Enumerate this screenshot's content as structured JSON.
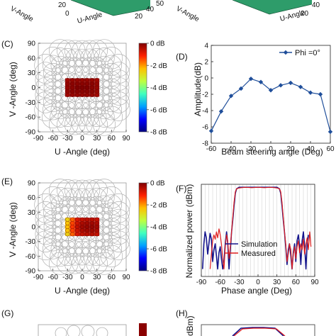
{
  "top_strip": {
    "left_labels": {
      "v_axis": "V-Angle",
      "u_axis": "U-Angle",
      "ticks": [
        "20",
        "0",
        "20",
        "40",
        "50"
      ]
    },
    "right_labels": {
      "v_axis": "V-Angle",
      "u_axis": "U-Angle",
      "ticks": [
        "20",
        "40"
      ]
    }
  },
  "colorbar": {
    "ticks": [
      "0 dB",
      "-2 dB",
      "-4 dB",
      "-6 dB",
      "-8 dB"
    ],
    "range": [
      -8,
      0
    ],
    "colors": [
      "#00007f",
      "#0000ff",
      "#00a0ff",
      "#40ffbf",
      "#bfff40",
      "#ffc000",
      "#ff2000",
      "#800000"
    ]
  },
  "chart_data": [
    {
      "panel": "(C)",
      "type": "heatmap",
      "xlabel": "U -Angle (deg)",
      "ylabel": "V -Angle (deg)",
      "xlim": [
        -90,
        90
      ],
      "ylim": [
        -90,
        90
      ],
      "xticks": [
        -90,
        -60,
        -30,
        0,
        30,
        60,
        90
      ],
      "yticks": [
        -90,
        -60,
        -30,
        0,
        30,
        60,
        90
      ],
      "active_u": [
        -30,
        -20,
        -10,
        0,
        10,
        20,
        30
      ],
      "active_v": [
        -15,
        -7.5,
        0,
        7.5,
        15
      ],
      "active_values_db": [
        [
          -0.3,
          -0.2,
          -0.2,
          -0.2,
          -0.2,
          -0.2,
          -0.3
        ],
        [
          -0.2,
          -0.1,
          -0.1,
          -0.1,
          -0.1,
          -0.1,
          -0.2
        ],
        [
          -0.2,
          -0.1,
          0,
          0,
          0,
          -0.1,
          -0.2
        ],
        [
          -0.2,
          -0.1,
          -0.1,
          -0.1,
          -0.1,
          -0.1,
          -0.2
        ],
        [
          -0.3,
          -0.2,
          -0.2,
          -0.2,
          -0.2,
          -0.2,
          -0.3
        ]
      ]
    },
    {
      "panel": "(D)",
      "type": "line",
      "xlabel": "Beam steering angle (Deg)",
      "ylabel": "Amplitude(dB)",
      "xlim": [
        -60,
        60
      ],
      "ylim": [
        -8,
        4
      ],
      "xticks": [
        -60,
        -40,
        -20,
        0,
        20,
        40,
        60
      ],
      "yticks": [
        -8,
        -6,
        -4,
        -2,
        0,
        2,
        4
      ],
      "legend_position": "top-right",
      "series": [
        {
          "name": "Phi =0°",
          "color": "#1f4e9a",
          "x": [
            -60,
            -50,
            -40,
            -30,
            -20,
            -10,
            0,
            10,
            20,
            30,
            40,
            50,
            60
          ],
          "y": [
            -6.5,
            -4.1,
            -2.2,
            -1.3,
            -0.1,
            -0.5,
            -1.5,
            -0.9,
            -0.6,
            -1.1,
            -1.8,
            -2.0,
            -6.6
          ]
        }
      ]
    },
    {
      "panel": "(E)",
      "type": "heatmap",
      "xlabel": "U -Angle (deg)",
      "ylabel": "V -Angle (deg)",
      "xlim": [
        -90,
        90
      ],
      "ylim": [
        -90,
        90
      ],
      "xticks": [
        -90,
        -60,
        -30,
        0,
        30,
        60,
        90
      ],
      "yticks": [
        -90,
        -60,
        -30,
        0,
        30,
        60,
        90
      ],
      "active_u": [
        -30,
        -20,
        -10,
        0,
        10,
        20,
        30
      ],
      "active_v": [
        -15,
        -7.5,
        0,
        7.5,
        15
      ],
      "active_values_db": [
        [
          -2.6,
          -1.6,
          -0.8,
          -0.6,
          -0.5,
          -0.5,
          -0.6
        ],
        [
          -2.4,
          -1.4,
          -0.7,
          -0.4,
          -0.3,
          -0.3,
          -0.4
        ],
        [
          -2.3,
          -1.3,
          -0.6,
          -0.3,
          -0.2,
          -0.2,
          -0.3
        ],
        [
          -2.4,
          -1.4,
          -0.7,
          -0.4,
          -0.3,
          -0.3,
          -0.4
        ],
        [
          -2.6,
          -1.6,
          -0.8,
          -0.6,
          -0.5,
          -0.5,
          -0.6
        ]
      ]
    },
    {
      "panel": "(F)",
      "type": "line",
      "xlabel": "Phase angle (Deg)",
      "ylabel": "Normalized power (dBm)",
      "xlim": [
        -90,
        90
      ],
      "ylim": [
        -60,
        2
      ],
      "xticks": [
        -90,
        -60,
        -30,
        0,
        30,
        60,
        90
      ],
      "legend_position": "bottom-center",
      "series": [
        {
          "name": "Simulation",
          "color": "#14148c",
          "x": [
            -88,
            -86,
            -84,
            -82,
            -80,
            -78,
            -76,
            -74,
            -72,
            -70,
            -68,
            -66,
            -64,
            -62,
            -60,
            -58,
            -56,
            -54,
            -52,
            -50,
            -48,
            -46,
            -44,
            -42,
            -40,
            -38,
            -36,
            -34,
            -30,
            -20,
            -10,
            0,
            10,
            20,
            30,
            34,
            36,
            38,
            40,
            42,
            44,
            46,
            48,
            50,
            52,
            54,
            56,
            58,
            60,
            62,
            64,
            66,
            68,
            70,
            72,
            74,
            76,
            78,
            80
          ],
          "y": [
            -55,
            -38,
            -30,
            -34,
            -45,
            -38,
            -31,
            -35,
            -50,
            -42,
            -38,
            -46,
            -55,
            -44,
            -40,
            -48,
            -55,
            -50,
            -38,
            -30,
            -38,
            -55,
            -42,
            -30,
            -22,
            -12,
            -4,
            -1,
            0,
            0,
            0,
            0,
            0,
            0,
            0,
            -1,
            -4,
            -12,
            -22,
            -30,
            -40,
            -52,
            -42,
            -38,
            -46,
            -55,
            -44,
            -38,
            -50,
            -36,
            -32,
            -40,
            -52,
            -36,
            -30,
            -40,
            -55,
            -38,
            -32
          ]
        },
        {
          "name": "Measured",
          "color": "#e01f1f",
          "x": [
            -76,
            -74,
            -72,
            -70,
            -68,
            -66,
            -64,
            -62,
            -60,
            -58,
            -56,
            -54,
            -52,
            -50,
            -48,
            -46,
            -44,
            -42,
            -40,
            -38,
            -36,
            -34,
            -30,
            -20,
            -10,
            0,
            10,
            20,
            30,
            34,
            36,
            38,
            40,
            42,
            44,
            46,
            48,
            50,
            52,
            54,
            56,
            58,
            60,
            62,
            64,
            66,
            68,
            70,
            72,
            74,
            76,
            78,
            80,
            82,
            84
          ],
          "y": [
            -55,
            -45,
            -36,
            -32,
            -35,
            -30,
            -34,
            -28,
            -32,
            -38,
            -48,
            -55,
            -40,
            -32,
            -36,
            -48,
            -40,
            -30,
            -20,
            -10,
            -3,
            -1,
            -0.5,
            0,
            -0.3,
            0,
            -0.3,
            0,
            -0.5,
            -1,
            -3,
            -10,
            -20,
            -30,
            -38,
            -50,
            -45,
            -38,
            -42,
            -55,
            -45,
            -40,
            -48,
            -40,
            -36,
            -44,
            -38,
            -42,
            -35,
            -45,
            -38,
            -34,
            -42,
            -30,
            -40
          ]
        }
      ]
    }
  ],
  "panels_bottom": {
    "g": "(G)",
    "h": "(H)",
    "h_ylabel_fragment": "dBm)"
  }
}
